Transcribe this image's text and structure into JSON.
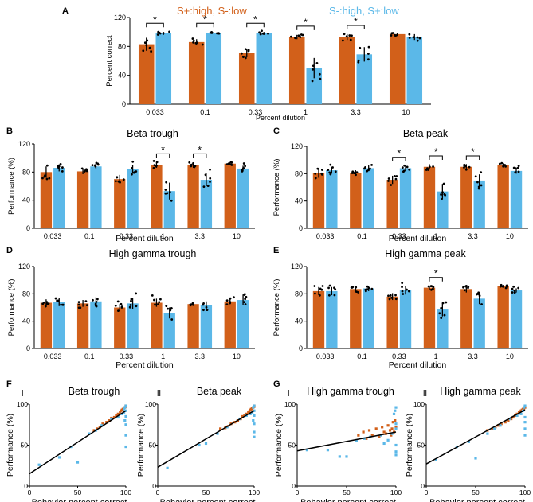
{
  "colors": {
    "s_plus_high": "#D2601A",
    "s_minus_high": "#5BB8E8",
    "axis": "#000000",
    "fit_line": "#000000"
  },
  "legend": {
    "orange_label": "S+:high, S-:low",
    "blue_label": "S-:high, S+:low"
  },
  "chart_data": [
    {
      "panel": "A",
      "type": "bar",
      "title": "",
      "xlabel": "Percent dilution",
      "ylabel": "Percent correct",
      "ylim": [
        0,
        120
      ],
      "yticks": [
        0,
        40,
        80,
        120
      ],
      "categories": [
        "0.033",
        "0.1",
        "0.33",
        "1",
        "3.3",
        "10"
      ],
      "series": [
        {
          "name": "S+:high, S-:low",
          "values": [
            83,
            86,
            71,
            93,
            93,
            97
          ],
          "err": [
            9,
            4,
            6,
            3,
            4,
            2
          ]
        },
        {
          "name": "S-:high, S+:low",
          "values": [
            98,
            99,
            98,
            50,
            69,
            93
          ],
          "err": [
            2,
            1,
            2,
            14,
            10,
            4
          ]
        }
      ],
      "significant": [
        "0.033",
        "0.1",
        "0.33",
        "1",
        "3.3"
      ],
      "sig_marker": "*"
    },
    {
      "panel": "B",
      "type": "bar",
      "title": "Beta trough",
      "xlabel": "Percent dilution",
      "ylabel": "Performance (%)",
      "ylim": [
        0,
        120
      ],
      "yticks": [
        0,
        40,
        80,
        120
      ],
      "categories": [
        "0.033",
        "0.1",
        "0.33",
        "1",
        "3.3",
        "10"
      ],
      "series": [
        {
          "name": "S+:high, S-:low",
          "values": [
            80,
            81,
            70,
            90,
            90,
            92
          ],
          "err": [
            8,
            4,
            6,
            4,
            4,
            2
          ]
        },
        {
          "name": "S-:high, S+:low",
          "values": [
            86,
            88,
            84,
            53,
            69,
            85
          ],
          "err": [
            5,
            4,
            6,
            12,
            9,
            4
          ]
        }
      ],
      "significant": [
        "1",
        "3.3"
      ],
      "sig_marker": "*"
    },
    {
      "panel": "C",
      "type": "bar",
      "title": "Beta peak",
      "xlabel": "Percent dilution",
      "ylabel": "Performance (%)",
      "ylim": [
        0,
        120
      ],
      "yticks": [
        0,
        40,
        80,
        120
      ],
      "categories": [
        "0.033",
        "0.1",
        "0.33",
        "1",
        "3.3",
        "10"
      ],
      "series": [
        {
          "name": "S+:high, S-:low",
          "values": [
            81,
            81,
            71,
            90,
            90,
            93
          ],
          "err": [
            7,
            4,
            6,
            4,
            4,
            2
          ]
        },
        {
          "name": "S-:high, S+:low",
          "values": [
            85,
            88,
            88,
            54,
            70,
            84
          ],
          "err": [
            5,
            4,
            4,
            11,
            9,
            4
          ]
        }
      ],
      "significant": [
        "0.33",
        "1",
        "3.3"
      ],
      "sig_marker": "*"
    },
    {
      "panel": "D",
      "type": "bar",
      "title": "High gamma trough",
      "xlabel": "Percent dilution",
      "ylabel": "Performance (%)",
      "ylim": [
        0,
        120
      ],
      "yticks": [
        0,
        40,
        80,
        120
      ],
      "categories": [
        "0.033",
        "0.1",
        "0.33",
        "1",
        "3.3",
        "10"
      ],
      "series": [
        {
          "name": "S+:high, S-:low",
          "values": [
            67,
            66,
            60,
            67,
            65,
            69
          ],
          "err": [
            5,
            5,
            5,
            6,
            2,
            4
          ]
        },
        {
          "name": "S-:high, S+:low",
          "values": [
            68,
            69,
            66,
            52,
            63,
            71
          ],
          "err": [
            6,
            6,
            8,
            8,
            6,
            8
          ]
        }
      ],
      "significant": [],
      "sig_marker": "*"
    },
    {
      "panel": "E",
      "type": "bar",
      "title": "High gamma peak",
      "xlabel": "Percent dilution",
      "ylabel": "Performance (%)",
      "ylim": [
        0,
        120
      ],
      "yticks": [
        0,
        40,
        80,
        120
      ],
      "categories": [
        "0.033",
        "0.1",
        "0.33",
        "1",
        "3.3",
        "10"
      ],
      "series": [
        {
          "name": "S+:high, S-:low",
          "values": [
            84,
            87,
            76,
            89,
            87,
            91
          ],
          "err": [
            6,
            5,
            5,
            3,
            5,
            2
          ]
        },
        {
          "name": "S-:high, S+:low",
          "values": [
            84,
            88,
            85,
            57,
            73,
            85
          ],
          "err": [
            6,
            4,
            6,
            10,
            8,
            3
          ]
        }
      ],
      "significant": [
        "1"
      ],
      "sig_marker": "*"
    },
    {
      "panel": "F",
      "sub": "i",
      "type": "scatter",
      "title": "Beta trough",
      "xlabel": "Behavior percent correct",
      "ylabel": "Performance (%)",
      "xlim": [
        0,
        100
      ],
      "ylim": [
        0,
        100
      ],
      "xticks": [
        0,
        50,
        100
      ],
      "yticks": [
        0,
        50,
        100
      ],
      "fit": [
        [
          0,
          15
        ],
        [
          100,
          92
        ]
      ],
      "series": [
        {
          "name": "S+:high, S-:low",
          "x": [
            67,
            70,
            73,
            76,
            80,
            83,
            85,
            88,
            90,
            92,
            94,
            95,
            96,
            97,
            98,
            99,
            100,
            100
          ],
          "y": [
            68,
            70,
            72,
            76,
            78,
            80,
            83,
            84,
            86,
            88,
            90,
            92,
            93,
            94,
            95,
            96,
            97,
            98
          ]
        },
        {
          "name": "S-:high, S+:low",
          "x": [
            10,
            31,
            43,
            50,
            62,
            69,
            75,
            85,
            92,
            96,
            98,
            98,
            99,
            99,
            100,
            100,
            100,
            100,
            100,
            100
          ],
          "y": [
            26,
            35,
            48,
            29,
            64,
            68,
            74,
            82,
            84,
            88,
            90,
            94,
            96,
            80,
            98,
            92,
            85,
            75,
            62,
            48
          ]
        }
      ]
    },
    {
      "panel": "F",
      "sub": "ii",
      "type": "scatter",
      "title": "Beta peak",
      "xlabel": "Behavior percent correct",
      "ylabel": "Performance (%)",
      "xlim": [
        0,
        100
      ],
      "ylim": [
        0,
        100
      ],
      "xticks": [
        0,
        50,
        100
      ],
      "yticks": [
        0,
        50,
        100
      ],
      "fit": [
        [
          0,
          23
        ],
        [
          100,
          92
        ]
      ],
      "series": [
        {
          "name": "S+:high, S-:low",
          "x": [
            65,
            70,
            73,
            76,
            80,
            83,
            86,
            88,
            90,
            92,
            94,
            95,
            96,
            97,
            98,
            99,
            100,
            100
          ],
          "y": [
            70,
            71,
            73,
            76,
            78,
            80,
            82,
            85,
            86,
            88,
            90,
            91,
            93,
            94,
            95,
            96,
            97,
            98
          ]
        },
        {
          "name": "S-:high, S+:low",
          "x": [
            10,
            43,
            50,
            62,
            72,
            85,
            92,
            96,
            98,
            99,
            99,
            100,
            100,
            100,
            100,
            100,
            100
          ],
          "y": [
            22,
            50,
            52,
            64,
            72,
            82,
            86,
            88,
            90,
            96,
            80,
            98,
            92,
            86,
            76,
            66,
            60
          ]
        }
      ]
    },
    {
      "panel": "G",
      "sub": "i",
      "type": "scatter",
      "title": "High gamma trough",
      "xlabel": "Behavior percent correct",
      "ylabel": "Performance (%)",
      "xlim": [
        0,
        100
      ],
      "ylim": [
        0,
        100
      ],
      "xticks": [
        0,
        50,
        100
      ],
      "yticks": [
        0,
        50,
        100
      ],
      "fit": [
        [
          0,
          43
        ],
        [
          100,
          66
        ]
      ],
      "series": [
        {
          "name": "S+:high, S-:low",
          "x": [
            62,
            67,
            70,
            73,
            76,
            80,
            83,
            86,
            88,
            90,
            92,
            94,
            95,
            96,
            97,
            98,
            99,
            100
          ],
          "y": [
            62,
            66,
            58,
            68,
            62,
            70,
            60,
            72,
            66,
            64,
            74,
            68,
            62,
            70,
            78,
            66,
            80,
            72
          ]
        },
        {
          "name": "S-:high, S+:low",
          "x": [
            10,
            31,
            43,
            50,
            60,
            68,
            74,
            85,
            88,
            92,
            96,
            98,
            99,
            100,
            100,
            100,
            100,
            100,
            100
          ],
          "y": [
            44,
            44,
            36,
            36,
            55,
            58,
            60,
            62,
            52,
            56,
            64,
            88,
            92,
            96,
            76,
            70,
            50,
            42,
            38
          ]
        }
      ]
    },
    {
      "panel": "G",
      "sub": "ii",
      "type": "scatter",
      "title": "High gamma peak",
      "xlabel": "Behavior percent correct",
      "ylabel": "Performance (%)",
      "xlim": [
        0,
        100
      ],
      "ylim": [
        0,
        100
      ],
      "xticks": [
        0,
        50,
        100
      ],
      "yticks": [
        0,
        50,
        100
      ],
      "fit": [
        [
          0,
          27
        ],
        [
          100,
          93
        ]
      ],
      "series": [
        {
          "name": "S+:high, S-:low",
          "x": [
            62,
            67,
            70,
            73,
            76,
            80,
            83,
            86,
            88,
            90,
            92,
            94,
            95,
            96,
            97,
            98,
            99,
            100
          ],
          "y": [
            68,
            70,
            72,
            74,
            76,
            78,
            80,
            82,
            84,
            86,
            88,
            90,
            91,
            92,
            93,
            94,
            95,
            96
          ]
        },
        {
          "name": "S-:high, S+:low",
          "x": [
            10,
            31,
            43,
            50,
            62,
            69,
            75,
            85,
            92,
            96,
            98,
            99,
            100,
            100,
            100,
            100,
            100
          ],
          "y": [
            32,
            48,
            54,
            34,
            64,
            70,
            74,
            82,
            86,
            88,
            92,
            96,
            98,
            84,
            78,
            70,
            62
          ]
        }
      ]
    }
  ]
}
